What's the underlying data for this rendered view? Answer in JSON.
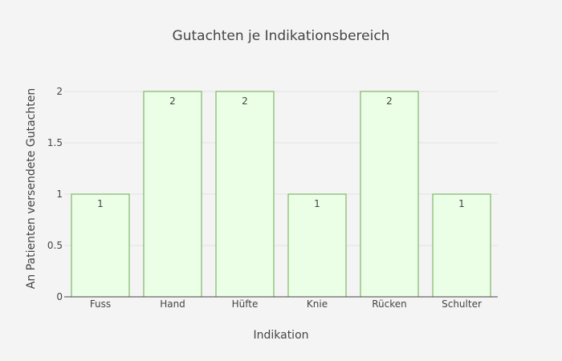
{
  "chart_data": {
    "type": "bar",
    "title": "Gutachten je Indikationsbereich",
    "xlabel": "Indikation",
    "ylabel": "An Patienten versendete Gutachten",
    "categories": [
      "Fuss",
      "Hand",
      "Hüfte",
      "Knie",
      "Rücken",
      "Schulter"
    ],
    "values": [
      1,
      2,
      2,
      1,
      2,
      1
    ],
    "ylim": [
      0,
      2
    ],
    "yticks": [
      "0",
      "0.5",
      "1",
      "1.5",
      "2"
    ],
    "grid": true,
    "legend": "none",
    "colors": {
      "bar_fill": "#eaffe5",
      "bar_stroke": "#6aa84f",
      "background": "#f4f4f4"
    }
  }
}
